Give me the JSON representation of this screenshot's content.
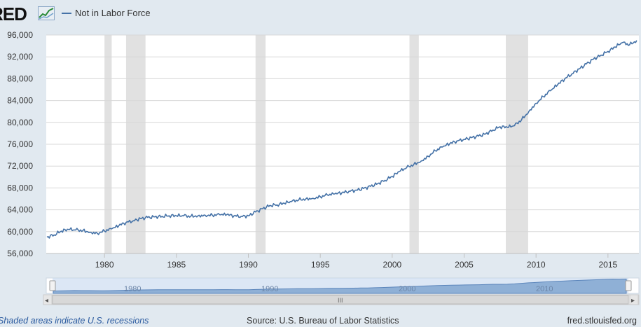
{
  "header": {
    "logo_text": "RED",
    "logo_icon": "fred-chart-icon"
  },
  "chart_data": {
    "type": "line",
    "legend_position": "top-left",
    "grid": true,
    "title": "",
    "xlabel": "",
    "ylabel": "",
    "ylim": [
      56000,
      96000
    ],
    "xlim": [
      1975.95,
      2017.15
    ],
    "y_ticks": [
      56000,
      60000,
      64000,
      68000,
      72000,
      76000,
      80000,
      84000,
      88000,
      92000,
      96000
    ],
    "y_tick_labels": [
      "56,000",
      "60,000",
      "64,000",
      "68,000",
      "72,000",
      "76,000",
      "80,000",
      "84,000",
      "88,000",
      "92,000",
      "96,000"
    ],
    "x_ticks": [
      1980,
      1985,
      1990,
      1995,
      2000,
      2005,
      2010,
      2015
    ],
    "x_tick_labels": [
      "1980",
      "1985",
      "1990",
      "1995",
      "2000",
      "2005",
      "2010",
      "2015"
    ],
    "recessions": [
      [
        1980.0,
        1980.5
      ],
      [
        1981.5,
        1982.85
      ],
      [
        1990.5,
        1991.2
      ],
      [
        2001.2,
        2001.85
      ],
      [
        2007.9,
        2009.45
      ]
    ],
    "series": [
      {
        "name": "Not in Labor Force",
        "color": "#4572a7",
        "x": [
          1976.0,
          1976.5,
          1977.0,
          1977.5,
          1978.0,
          1978.5,
          1979.0,
          1979.5,
          1980.0,
          1980.5,
          1981.0,
          1981.5,
          1982.0,
          1982.5,
          1983.0,
          1983.5,
          1984.0,
          1984.5,
          1985.0,
          1985.5,
          1986.0,
          1986.5,
          1987.0,
          1987.5,
          1988.0,
          1988.5,
          1989.0,
          1989.5,
          1990.0,
          1990.5,
          1991.0,
          1991.5,
          1992.0,
          1992.5,
          1993.0,
          1993.5,
          1994.0,
          1994.5,
          1995.0,
          1995.5,
          1996.0,
          1996.5,
          1997.0,
          1997.5,
          1998.0,
          1998.5,
          1999.0,
          1999.5,
          2000.0,
          2000.5,
          2001.0,
          2001.5,
          2002.0,
          2002.5,
          2003.0,
          2003.5,
          2004.0,
          2004.5,
          2005.0,
          2005.5,
          2006.0,
          2006.5,
          2007.0,
          2007.5,
          2008.0,
          2008.5,
          2009.0,
          2009.5,
          2010.0,
          2010.5,
          2011.0,
          2011.5,
          2012.0,
          2012.5,
          2013.0,
          2013.5,
          2014.0,
          2014.5,
          2015.0,
          2015.5,
          2016.0,
          2016.5,
          2017.0
        ],
        "values": [
          59000,
          59400,
          60100,
          60400,
          60300,
          60200,
          59900,
          59700,
          60100,
          60500,
          61100,
          61700,
          62000,
          62400,
          62600,
          62700,
          62800,
          62900,
          62900,
          62900,
          62800,
          62900,
          63000,
          63000,
          63100,
          63100,
          62900,
          62800,
          62900,
          63600,
          64200,
          64800,
          64900,
          65200,
          65500,
          65800,
          66000,
          66100,
          66400,
          66700,
          66900,
          67100,
          67400,
          67600,
          67900,
          68300,
          68800,
          69400,
          70100,
          71000,
          71700,
          72300,
          72900,
          73800,
          74800,
          75500,
          76100,
          76600,
          76900,
          77200,
          77500,
          77900,
          78600,
          79200,
          79100,
          79400,
          80500,
          82000,
          83500,
          84700,
          85800,
          86900,
          88000,
          88900,
          89800,
          90700,
          91600,
          92300,
          93000,
          93800,
          94600,
          94200,
          95000
        ]
      }
    ]
  },
  "navigator": {
    "labels": [
      "1980",
      "1990",
      "2000",
      "2010"
    ],
    "scroll_handle_glyph": "III",
    "left_arrow_glyph": "◂",
    "right_arrow_glyph": "▸"
  },
  "footer": {
    "recession_note": "Shaded areas indicate U.S. recessions",
    "source": "Source: U.S. Bureau of Labor Statistics",
    "site": "fred.stlouisfed.org"
  }
}
